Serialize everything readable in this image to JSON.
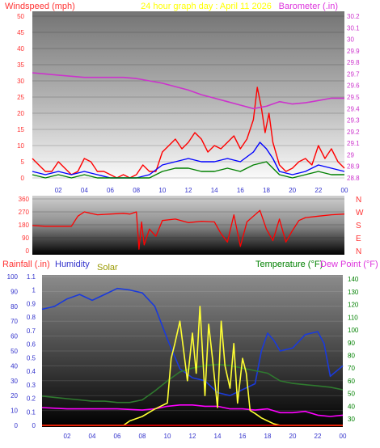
{
  "header": {
    "windspeed_label": "Windspeed (mph)",
    "title": "24 hour graph day : April 11 2026",
    "barometer_label": "Barometer (.in)"
  },
  "bottom_header": {
    "rainfall_label": "Rainfall (.in)",
    "humidity_label": "Humidity",
    "solar_label": "Solar",
    "temperature_label": "Temperature (°F)",
    "dewpoint_label": "Dew Point (°F)"
  },
  "colors": {
    "wind_gust": "#ff0000",
    "wind_avg": "#0000ff",
    "wind_min": "#008000",
    "barometer": "#cc33cc",
    "direction": "#ff0000",
    "humidity": "#1a3adb",
    "temperature": "#2f7a2f",
    "dewpoint": "#ff00ff",
    "solar": "#ffff33",
    "rainfall": "#ff0000",
    "label_red": "#ff3333",
    "label_blue": "#3333cc",
    "label_magenta": "#dd33dd",
    "label_yellow": "#ffff00",
    "label_olive": "#999900",
    "label_green": "#008000",
    "axis_red": "#ff3333",
    "axis_magenta": "#cc33cc",
    "axis_blue": "#3333cc",
    "axis_green": "#008000"
  },
  "chart_data": [
    {
      "id": "wind_baro",
      "type": "line",
      "x_tick_labels": [
        "02",
        "04",
        "06",
        "08",
        "10",
        "12",
        "14",
        "16",
        "18",
        "20",
        "22",
        "00"
      ],
      "y_left_ticks": [
        "50",
        "45",
        "40",
        "35",
        "30",
        "25",
        "20",
        "15",
        "10",
        "5",
        "0"
      ],
      "y_right_ticks": [
        "30.2",
        "30.1",
        "30",
        "29.9",
        "29.8",
        "29.7",
        "29.6",
        "29.5",
        "29.4",
        "29.3",
        "29.2",
        "29.1",
        "29",
        "28.9",
        "28.8"
      ],
      "ylim_left": [
        0,
        50
      ],
      "ylim_right": [
        28.8,
        30.2
      ],
      "x_range_hours": [
        0,
        24
      ],
      "series": [
        {
          "name": "Windspeed",
          "axis": "left",
          "color_key": "wind_gust",
          "x": [
            0,
            0.5,
            1,
            1.5,
            2,
            2.5,
            3,
            3.5,
            4,
            4.5,
            5,
            5.5,
            6,
            6.5,
            7,
            7.5,
            8,
            8.5,
            9,
            9.5,
            10,
            10.5,
            11,
            11.5,
            12,
            12.5,
            13,
            13.5,
            14,
            14.5,
            15,
            15.5,
            16,
            16.5,
            17,
            17.3,
            17.6,
            17.9,
            18.2,
            18.5,
            19,
            19.5,
            20,
            20.5,
            21,
            21.5,
            22,
            22.5,
            23,
            23.5,
            24
          ],
          "values": [
            6,
            4,
            2,
            2,
            5,
            3,
            1,
            2,
            6,
            5,
            2,
            2,
            1,
            0,
            1,
            0,
            1,
            4,
            2,
            2,
            8,
            10,
            12,
            9,
            11,
            14,
            12,
            8,
            10,
            9,
            11,
            13,
            9,
            12,
            18,
            28,
            22,
            14,
            20,
            11,
            4,
            2,
            3,
            5,
            6,
            4,
            10,
            6,
            9,
            5,
            3
          ]
        },
        {
          "name": "Windspeed avg",
          "axis": "left",
          "color_key": "wind_avg",
          "x": [
            0,
            1,
            2,
            3,
            4,
            5,
            6,
            7,
            8,
            9,
            10,
            11,
            12,
            13,
            14,
            15,
            16,
            17,
            17.5,
            18,
            18.5,
            19,
            20,
            21,
            22,
            23,
            24
          ],
          "values": [
            2,
            1,
            2,
            1,
            2,
            1,
            0,
            0,
            0,
            1,
            4,
            5,
            6,
            5,
            5,
            6,
            5,
            8,
            11,
            9,
            6,
            2,
            1,
            2,
            4,
            3,
            2
          ]
        },
        {
          "name": "Windspeed min",
          "axis": "left",
          "color_key": "wind_min",
          "x": [
            0,
            1,
            2,
            3,
            4,
            5,
            6,
            7,
            8,
            9,
            10,
            11,
            12,
            13,
            14,
            15,
            16,
            17,
            18,
            19,
            20,
            21,
            22,
            23,
            24
          ],
          "values": [
            1,
            0,
            1,
            0,
            1,
            0,
            0,
            0,
            0,
            0,
            2,
            3,
            3,
            2,
            2,
            3,
            2,
            4,
            5,
            1,
            0,
            1,
            2,
            1,
            1
          ]
        },
        {
          "name": "Barometer",
          "axis": "right",
          "color_key": "barometer",
          "x": [
            0,
            1,
            2,
            3,
            4,
            5,
            6,
            7,
            8,
            9,
            10,
            11,
            12,
            13,
            14,
            15,
            16,
            17,
            18,
            19,
            20,
            21,
            22,
            23,
            24
          ],
          "values": [
            29.71,
            29.7,
            29.69,
            29.68,
            29.67,
            29.67,
            29.67,
            29.67,
            29.66,
            29.64,
            29.62,
            29.59,
            29.56,
            29.52,
            29.49,
            29.46,
            29.43,
            29.4,
            29.42,
            29.46,
            29.44,
            29.45,
            29.47,
            29.49,
            29.49
          ]
        }
      ]
    },
    {
      "id": "wind_direction",
      "type": "line",
      "x_tick_labels": [],
      "y_left_ticks": [
        "360",
        "270",
        "180",
        "90",
        "0"
      ],
      "direction_labels": [
        "N",
        "W",
        "S",
        "E",
        "N"
      ],
      "ylim_left": [
        0,
        360
      ],
      "x_range_hours": [
        0,
        24
      ],
      "series": [
        {
          "name": "Wind direction",
          "axis": "left",
          "color_key": "direction",
          "x": [
            0,
            1,
            2,
            3,
            3.5,
            4,
            5,
            6,
            7,
            7.5,
            8,
            8.2,
            8.4,
            8.6,
            9,
            9.5,
            10,
            11,
            12,
            13,
            14,
            14.5,
            15,
            15.5,
            16,
            16.5,
            17,
            17.5,
            18,
            18.5,
            19,
            19.5,
            20,
            20.5,
            21,
            22,
            23,
            24
          ],
          "values": [
            175,
            170,
            170,
            170,
            240,
            270,
            250,
            255,
            260,
            255,
            270,
            10,
            200,
            40,
            150,
            100,
            210,
            220,
            195,
            205,
            200,
            120,
            60,
            250,
            30,
            200,
            240,
            280,
            150,
            70,
            220,
            60,
            140,
            210,
            230,
            240,
            250,
            255
          ]
        }
      ]
    },
    {
      "id": "rain_humidity_temp",
      "type": "line",
      "x_tick_labels": [
        "02",
        "04",
        "06",
        "08",
        "10",
        "12",
        "14",
        "16",
        "18",
        "20",
        "22",
        "00"
      ],
      "y_rain_ticks": [
        "1.1",
        "1",
        "0.9",
        "0.8",
        "0.7",
        "0.6",
        "0.5",
        "0.4",
        "0.3",
        "0.2",
        "0.1",
        "0"
      ],
      "y_humidity_ticks": [
        "100",
        "90",
        "80",
        "70",
        "60",
        "50",
        "40",
        "30",
        "20",
        "10",
        "0"
      ],
      "y_temp_ticks": [
        "140",
        "130",
        "120",
        "110",
        "100",
        "90",
        "80",
        "70",
        "60",
        "50",
        "40",
        "30"
      ],
      "ylim_rain": [
        0,
        1.1
      ],
      "ylim_humidity": [
        0,
        100
      ],
      "ylim_temperature": [
        25,
        142
      ],
      "x_range_hours": [
        0,
        24
      ],
      "series": [
        {
          "name": "Humidity",
          "axis": "humidity",
          "color_key": "humidity",
          "x": [
            0,
            1,
            2,
            3,
            4,
            5,
            6,
            7,
            8,
            9,
            10,
            11,
            12,
            13,
            14,
            15,
            16,
            17,
            17.5,
            18,
            18.5,
            19,
            20,
            21,
            22,
            22.5,
            23,
            24
          ],
          "values": [
            78,
            80,
            85,
            88,
            84,
            88,
            92,
            91,
            89,
            80,
            58,
            38,
            32,
            30,
            22,
            20,
            24,
            28,
            50,
            62,
            57,
            50,
            52,
            61,
            63,
            55,
            33,
            40
          ]
        },
        {
          "name": "Temperature",
          "axis": "temperature",
          "color_key": "temperature",
          "x": [
            0,
            1,
            2,
            3,
            4,
            5,
            6,
            7,
            8,
            9,
            10,
            11,
            12,
            13,
            14,
            15,
            16,
            17,
            18,
            19,
            20,
            21,
            22,
            23,
            24
          ],
          "values": [
            48,
            47,
            46,
            45,
            44,
            44,
            43,
            43,
            45,
            52,
            60,
            67,
            70,
            72,
            73,
            72,
            70,
            68,
            66,
            60,
            58,
            57,
            56,
            55,
            53
          ]
        },
        {
          "name": "Dew Point",
          "axis": "temperature",
          "color_key": "dewpoint",
          "x": [
            0,
            2,
            4,
            6,
            8,
            9,
            10,
            11,
            12,
            13,
            14,
            15,
            16,
            17,
            18,
            19,
            20,
            21,
            22,
            23,
            24
          ],
          "values": [
            39,
            38,
            38,
            38,
            37,
            38,
            40,
            41,
            41,
            40,
            40,
            38,
            38,
            37,
            38,
            35,
            35,
            36,
            33,
            32,
            33
          ]
        },
        {
          "name": "Solar",
          "axis": "humidity",
          "color_key": "solar",
          "x": [
            0,
            6.5,
            7,
            8,
            9,
            10,
            10.3,
            10.6,
            11,
            11.3,
            11.6,
            12,
            12.3,
            12.6,
            13,
            13.3,
            13.6,
            14,
            14.3,
            14.6,
            15,
            15.3,
            15.6,
            16,
            16.3,
            16.6,
            17,
            17.5,
            18,
            18.5,
            19,
            20,
            24
          ],
          "values": [
            0,
            0,
            3,
            6,
            11,
            15,
            45,
            55,
            70,
            50,
            30,
            62,
            35,
            80,
            20,
            68,
            45,
            12,
            70,
            40,
            25,
            55,
            15,
            45,
            35,
            10,
            8,
            5,
            3,
            1,
            0,
            0,
            0
          ]
        },
        {
          "name": "Rainfall",
          "axis": "rain",
          "color_key": "rainfall",
          "x": [
            0,
            24
          ],
          "values": [
            0,
            0
          ]
        }
      ]
    }
  ]
}
